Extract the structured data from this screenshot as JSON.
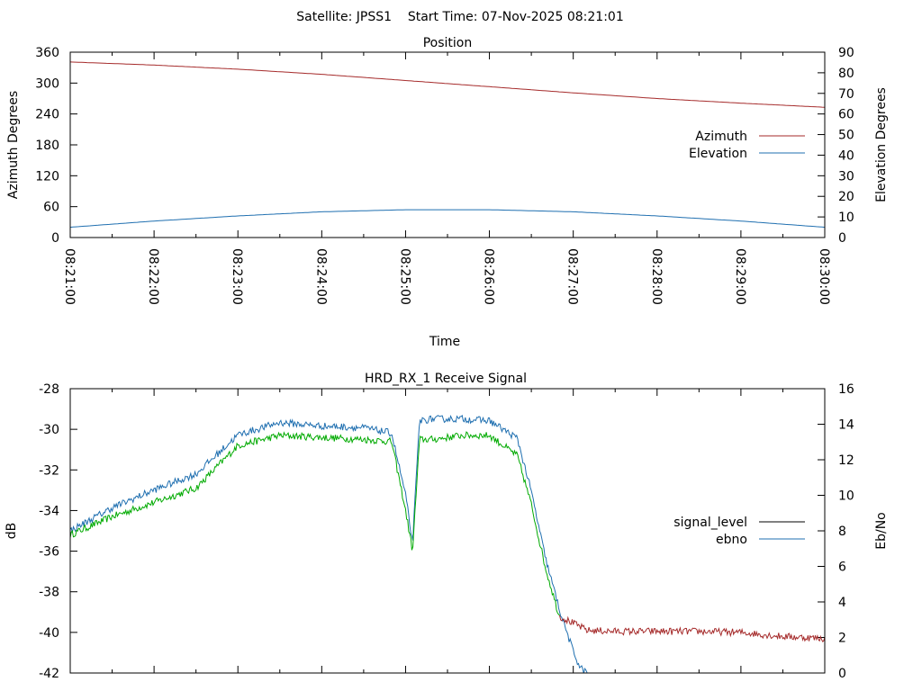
{
  "header": {
    "title": "Satellite: JPSS1    Start Time: 07-Nov-2025 08:21:01"
  },
  "chart_data": [
    {
      "type": "line",
      "title": "Position",
      "xlabel": "Time",
      "ylabel": "Azimuth Degrees",
      "y2label": "Elevation Degrees",
      "x_ticks": [
        "08:21:00",
        "08:22:00",
        "08:23:00",
        "08:24:00",
        "08:25:00",
        "08:26:00",
        "08:27:00",
        "08:28:00",
        "08:29:00",
        "08:30:00"
      ],
      "xlim": [
        "08:21:00",
        "08:30:00"
      ],
      "ylim": [
        0,
        360
      ],
      "y_ticks": [
        0,
        60,
        120,
        180,
        240,
        300,
        360
      ],
      "y2lim": [
        0,
        90
      ],
      "y2_ticks": [
        0,
        10,
        20,
        30,
        40,
        50,
        60,
        70,
        80,
        90
      ],
      "legend_position": "right",
      "colors": {
        "azimuth": "#a52a2a",
        "elevation": "#1f6fb0"
      },
      "series": [
        {
          "name": "Azimuth",
          "axis": "left",
          "x": [
            "08:21:00",
            "08:22:00",
            "08:23:00",
            "08:24:00",
            "08:25:00",
            "08:26:00",
            "08:27:00",
            "08:28:00",
            "08:29:00",
            "08:30:00"
          ],
          "values": [
            341,
            335,
            327,
            317,
            305,
            293,
            281,
            270,
            261,
            253
          ]
        },
        {
          "name": "Elevation",
          "axis": "right",
          "x": [
            "08:21:00",
            "08:22:00",
            "08:23:00",
            "08:24:00",
            "08:25:00",
            "08:26:00",
            "08:27:00",
            "08:28:00",
            "08:29:00",
            "08:30:00"
          ],
          "values": [
            5,
            8,
            10.5,
            12.5,
            13.5,
            13.5,
            12.5,
            10.5,
            8,
            5
          ]
        }
      ]
    },
    {
      "type": "line",
      "title": "HRD_RX_1 Receive Signal",
      "ylabel": "dB",
      "y2label": "Eb/No",
      "xlim": [
        "08:21:00",
        "08:30:00"
      ],
      "ylim": [
        -42,
        -28
      ],
      "y_ticks": [
        -42,
        -40,
        -38,
        -36,
        -34,
        -32,
        -30,
        -28
      ],
      "y2lim": [
        0,
        16
      ],
      "y2_ticks": [
        0,
        2,
        4,
        6,
        8,
        10,
        12,
        14,
        16
      ],
      "legend_position": "right",
      "colors": {
        "signal_level_legend": "#000000",
        "ebno_legend": "#1f6fb0",
        "blue_trace": "#1f6fb0",
        "green_trace": "#00aa00",
        "noise_floor": "#a52a2a"
      },
      "series": [
        {
          "name": "signal_level",
          "axis": "left",
          "x": [
            "08:21:00",
            "08:21:30",
            "08:22:00",
            "08:22:30",
            "08:23:00",
            "08:23:30",
            "08:24:00",
            "08:24:30",
            "08:24:50",
            "08:25:00",
            "08:25:05",
            "08:25:10",
            "08:25:20",
            "08:25:40",
            "08:26:00",
            "08:26:20",
            "08:26:30",
            "08:26:40",
            "08:26:50",
            "08:27:10",
            "08:27:30",
            "08:28:00",
            "08:28:30",
            "08:29:00",
            "08:29:30",
            "08:30:00"
          ],
          "values": [
            -35.2,
            -34.3,
            -33.6,
            -32.9,
            -30.8,
            -30.3,
            -30.4,
            -30.5,
            -30.6,
            -34.0,
            -36.0,
            -30.5,
            -30.5,
            -30.3,
            -30.3,
            -31.3,
            -33.7,
            -36.8,
            -39.2,
            -39.9,
            -39.95,
            -39.95,
            -39.95,
            -40.0,
            -40.2,
            -40.3
          ]
        },
        {
          "name": "ebno",
          "axis": "right",
          "x": [
            "08:21:00",
            "08:21:30",
            "08:22:00",
            "08:22:30",
            "08:23:00",
            "08:23:30",
            "08:24:00",
            "08:24:30",
            "08:24:50",
            "08:25:00",
            "08:25:05",
            "08:25:10",
            "08:25:20",
            "08:25:40",
            "08:26:00",
            "08:26:20",
            "08:26:30",
            "08:26:40",
            "08:26:50",
            "08:27:00",
            "08:27:05",
            "08:27:10"
          ],
          "values": [
            8.0,
            9.3,
            10.3,
            11.2,
            13.4,
            14.1,
            13.9,
            13.8,
            13.5,
            10.0,
            7.3,
            14.2,
            14.3,
            14.3,
            14.2,
            13.2,
            10.2,
            6.5,
            3.6,
            1.2,
            0.3,
            0.0
          ]
        }
      ]
    }
  ]
}
